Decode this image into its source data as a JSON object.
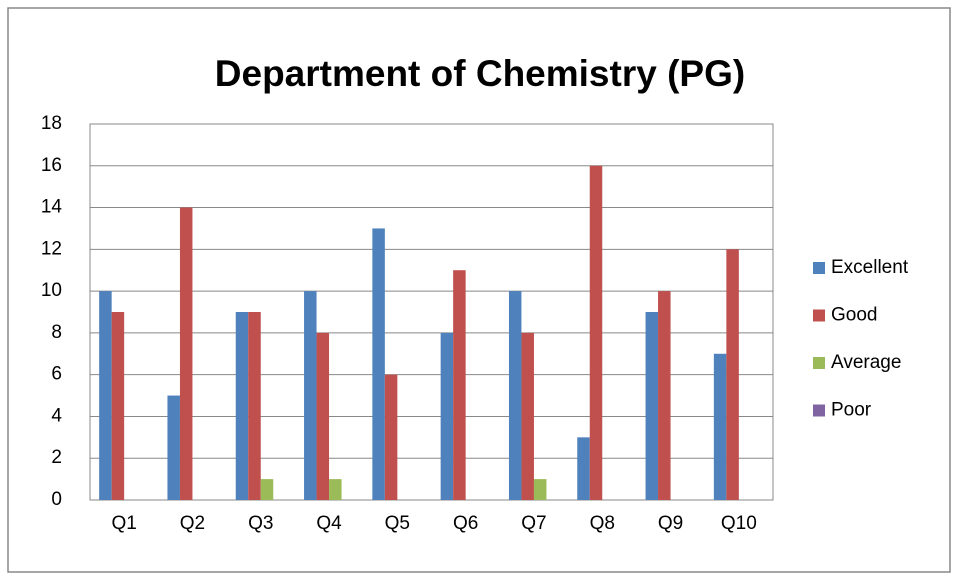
{
  "chart_data": {
    "type": "bar",
    "title": "Department of Chemistry (PG)",
    "categories": [
      "Q1",
      "Q2",
      "Q3",
      "Q4",
      "Q5",
      "Q6",
      "Q7",
      "Q8",
      "Q9",
      "Q10"
    ],
    "series": [
      {
        "name": "Excellent",
        "color": "#4f81bd",
        "values": [
          10,
          5,
          9,
          10,
          13,
          8,
          10,
          3,
          9,
          7
        ]
      },
      {
        "name": "Good",
        "color": "#c0504d",
        "values": [
          9,
          14,
          9,
          8,
          6,
          11,
          8,
          16,
          10,
          12
        ]
      },
      {
        "name": "Average",
        "color": "#9bbb59",
        "values": [
          0,
          0,
          1,
          1,
          0,
          0,
          1,
          0,
          0,
          0
        ]
      },
      {
        "name": "Poor",
        "color": "#8064a2",
        "values": [
          0,
          0,
          0,
          0,
          0,
          0,
          0,
          0,
          0,
          0
        ]
      }
    ],
    "ylim": [
      0,
      18
    ],
    "yticks": [
      0,
      2,
      4,
      6,
      8,
      10,
      12,
      14,
      16,
      18
    ],
    "grid": true,
    "legend": "right"
  }
}
